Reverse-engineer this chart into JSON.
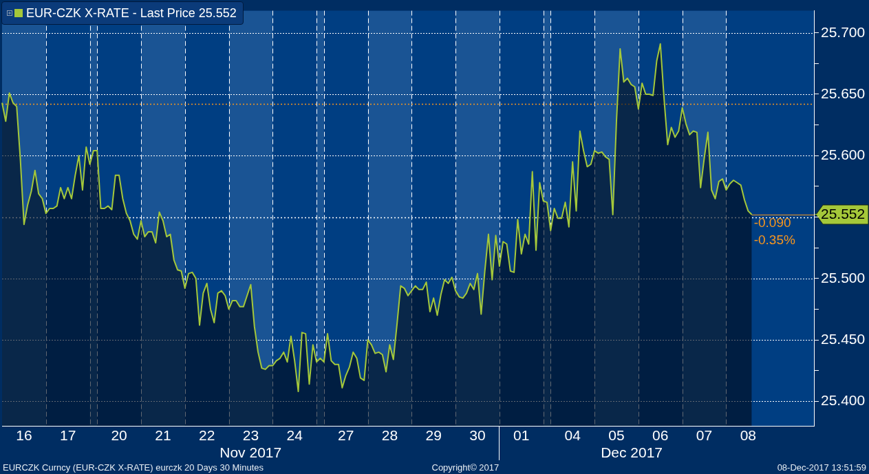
{
  "chart_data": {
    "type": "area",
    "categories": [
      null,
      null,
      null,
      null,
      null,
      null,
      "16",
      null,
      null,
      null,
      null,
      null,
      null,
      null,
      null,
      null,
      null,
      null,
      "17",
      null,
      null,
      null,
      null,
      null,
      null,
      null,
      null,
      null,
      null,
      null,
      null,
      null,
      "20",
      null,
      null,
      null,
      null,
      null,
      null,
      null,
      null,
      null,
      null,
      null,
      "21",
      null,
      null,
      null,
      null,
      null,
      null,
      null,
      null,
      null,
      null,
      null,
      "22",
      null,
      null,
      null,
      null,
      null,
      null,
      null,
      null,
      null,
      null,
      null,
      "23",
      null,
      null,
      null,
      null,
      null,
      null,
      null,
      null,
      null,
      null,
      null,
      "24",
      null,
      null,
      null,
      null,
      null,
      null,
      null,
      null,
      null,
      null,
      null,
      null,
      null,
      "27",
      null,
      null,
      null,
      null,
      null,
      null,
      null,
      null,
      null,
      null,
      null,
      "28",
      null,
      null,
      null,
      null,
      null,
      null,
      null,
      null,
      null,
      null,
      null,
      "29",
      null,
      null,
      null,
      null,
      null,
      null,
      null,
      null,
      null,
      null,
      null,
      "30",
      null,
      null,
      null,
      null,
      null,
      null,
      null,
      null,
      null,
      null,
      null,
      "01",
      null,
      null,
      null,
      null,
      null,
      null,
      null,
      null,
      null,
      null,
      null,
      null,
      null,
      "04",
      null,
      null,
      null,
      null,
      null,
      null,
      null,
      null,
      null,
      null,
      null,
      "05",
      null,
      null,
      null,
      null,
      null,
      null,
      null,
      null,
      null,
      null,
      null,
      "06",
      null,
      null,
      null,
      null,
      null,
      null,
      null,
      null,
      null,
      null,
      null,
      "07",
      null,
      null,
      null,
      null,
      null,
      null,
      null,
      null,
      null,
      null,
      null,
      "08",
      null,
      null,
      null,
      null,
      null,
      null,
      null,
      null,
      null,
      null,
      null,
      null,
      null,
      null,
      null,
      null,
      null,
      null
    ],
    "series": [
      {
        "name": "EUR-CZK X-RATE - Last Price 25.552",
        "color": "#a5c83a",
        "values": [
          25.643,
          25.628,
          25.651,
          25.643,
          25.64,
          25.597,
          25.544,
          25.56,
          25.571,
          25.588,
          25.569,
          25.565,
          25.553,
          25.557,
          25.557,
          25.559,
          25.574,
          25.565,
          25.574,
          25.565,
          25.584,
          25.6,
          25.572,
          25.607,
          25.593,
          25.604,
          25.604,
          25.557,
          25.557,
          25.559,
          25.556,
          25.584,
          25.584,
          25.565,
          25.553,
          25.547,
          25.536,
          25.532,
          25.547,
          25.534,
          25.538,
          25.538,
          25.529,
          25.554,
          25.547,
          25.534,
          25.536,
          25.515,
          25.507,
          25.506,
          25.492,
          25.504,
          25.505,
          25.5,
          25.462,
          25.488,
          25.496,
          25.475,
          25.464,
          25.488,
          25.49,
          25.486,
          25.475,
          25.482,
          25.482,
          25.477,
          25.477,
          25.486,
          25.495,
          25.461,
          25.44,
          25.427,
          25.426,
          25.429,
          25.429,
          25.433,
          25.435,
          25.44,
          25.432,
          25.453,
          25.433,
          25.408,
          25.456,
          25.455,
          25.414,
          25.446,
          25.432,
          25.435,
          25.432,
          25.455,
          25.433,
          25.43,
          25.43,
          25.411,
          25.421,
          25.428,
          25.44,
          25.435,
          25.419,
          25.417,
          25.45,
          25.446,
          25.439,
          25.44,
          25.438,
          25.424,
          25.446,
          25.434,
          25.463,
          25.494,
          25.492,
          25.486,
          25.49,
          25.494,
          25.491,
          25.491,
          25.497,
          25.473,
          25.484,
          25.47,
          25.487,
          25.499,
          25.496,
          25.501,
          25.49,
          25.485,
          25.484,
          25.488,
          25.496,
          25.491,
          25.504,
          25.471,
          25.506,
          25.536,
          25.499,
          25.535,
          25.51,
          25.53,
          25.528,
          25.506,
          25.505,
          25.548,
          25.52,
          25.536,
          25.528,
          25.587,
          25.523,
          25.578,
          25.563,
          25.562,
          25.539,
          25.557,
          25.549,
          25.549,
          25.562,
          25.542,
          25.595,
          25.555,
          25.62,
          25.604,
          25.591,
          25.593,
          25.604,
          25.602,
          25.603,
          25.599,
          25.597,
          25.552,
          25.628,
          25.687,
          25.66,
          25.663,
          25.658,
          25.656,
          25.638,
          25.659,
          25.65,
          25.65,
          25.649,
          25.677,
          25.691,
          25.647,
          25.609,
          25.623,
          25.615,
          25.62,
          25.639,
          25.626,
          25.617,
          25.62,
          25.619,
          25.574,
          25.598,
          25.619,
          25.572,
          25.565,
          25.579,
          25.581,
          25.572,
          25.577,
          25.58,
          25.578,
          25.576,
          25.564,
          25.555,
          25.552,
          null,
          null,
          null,
          null,
          null,
          null,
          null,
          null,
          null,
          null,
          null,
          null,
          null,
          null,
          null,
          null,
          null
        ]
      }
    ],
    "x2lim": [
      "2017-11-16T00:00",
      "2017-12-10T12:00"
    ],
    "x2ticks": [
      {
        "value": "2017-11-23T12:00",
        "label": "Nov 2017"
      },
      {
        "value": "2017-12-01T00:00",
        "label": null
      },
      {
        "value": "2017-12-05T00:00",
        "label": "Dec 2017"
      }
    ],
    "ylim": [
      25.38,
      25.718
    ],
    "yticks": [
      {
        "value": 25.4,
        "label": "25.400"
      },
      {
        "value": 25.425,
        "label": null
      },
      {
        "value": 25.45,
        "label": "25.450"
      },
      {
        "value": 25.475,
        "label": null
      },
      {
        "value": 25.5,
        "label": "25.500"
      },
      {
        "value": 25.525,
        "label": null
      },
      {
        "value": 25.55,
        "label": null
      },
      {
        "value": 25.552,
        "label": "25.552"
      },
      {
        "value": 25.575,
        "label": null
      },
      {
        "value": 25.6,
        "label": "25.600"
      },
      {
        "value": 25.625,
        "label": null
      },
      {
        "value": 25.65,
        "label": "25.650"
      },
      {
        "value": 25.675,
        "label": null
      },
      {
        "value": 25.7,
        "label": "25.700"
      }
    ],
    "grid": true,
    "legend": "top left",
    "ref_lines": [
      {
        "axis": "y",
        "value": 25.642,
        "color": "#f7961e",
        "line_style": "dotted"
      },
      {
        "axis": "y",
        "value": 25.55,
        "color": "#ffffff",
        "line_style": "dotted"
      }
    ],
    "annotations": [
      {
        "text": "-0.090",
        "y": 25.552
      },
      "-0.35%",
      "EURCZK Curncy (EUR-CZK X-RATE) eurczk 20 Days 30 Minutes",
      "Copyright© 2017",
      "08-Dec-2017 13:51:59"
    ]
  }
}
